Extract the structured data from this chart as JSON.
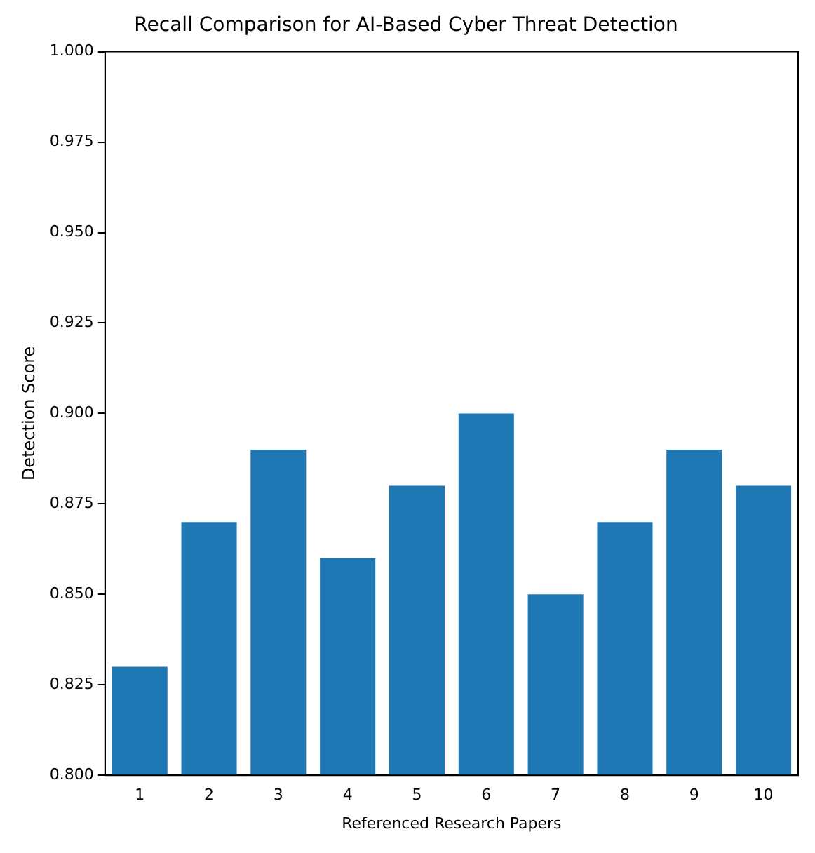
{
  "chart_data": {
    "type": "bar",
    "title": "Recall Comparison for AI-Based Cyber Threat Detection",
    "xlabel": "Referenced Research Papers",
    "ylabel": "Detection Score",
    "categories": [
      "1",
      "2",
      "3",
      "4",
      "5",
      "6",
      "7",
      "8",
      "9",
      "10"
    ],
    "values": [
      0.83,
      0.87,
      0.89,
      0.86,
      0.88,
      0.9,
      0.85,
      0.87,
      0.89,
      0.88
    ],
    "color": "#1f77b4",
    "ylim": [
      0.8,
      1.0
    ],
    "yticks": [
      {
        "value": 0.8,
        "label": "0.800"
      },
      {
        "value": 0.825,
        "label": "0.825"
      },
      {
        "value": 0.85,
        "label": "0.850"
      },
      {
        "value": 0.875,
        "label": "0.875"
      },
      {
        "value": 0.9,
        "label": "0.900"
      },
      {
        "value": 0.925,
        "label": "0.925"
      },
      {
        "value": 0.95,
        "label": "0.950"
      },
      {
        "value": 0.975,
        "label": "0.975"
      },
      {
        "value": 1.0,
        "label": "1.000"
      }
    ],
    "grid": false,
    "legend": false
  }
}
